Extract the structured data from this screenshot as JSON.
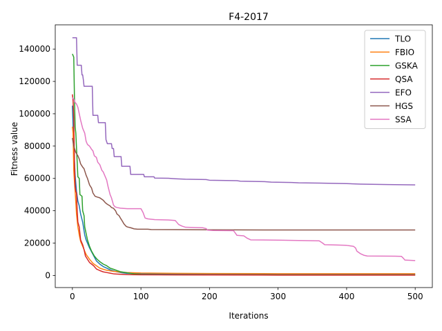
{
  "chart_data": {
    "type": "line",
    "title": "F4-2017",
    "xlabel": "Iterations",
    "ylabel": "Fitness value",
    "xlim": [
      -25,
      525
    ],
    "ylim": [
      -7500,
      155000
    ],
    "xticks": [
      0,
      100,
      200,
      300,
      400,
      500
    ],
    "yticks": [
      0,
      20000,
      40000,
      60000,
      80000,
      100000,
      120000,
      140000
    ],
    "grid": false,
    "legend_position": "top-right",
    "series": [
      {
        "name": "TLO",
        "color": "#1f77b4",
        "points": [
          [
            0,
            105000
          ],
          [
            2,
            80000
          ],
          [
            4,
            62000
          ],
          [
            6,
            52000
          ],
          [
            8,
            46000
          ],
          [
            10,
            43000
          ],
          [
            12,
            38000
          ],
          [
            15,
            33000
          ],
          [
            18,
            25000
          ],
          [
            20,
            22000
          ],
          [
            25,
            17000
          ],
          [
            30,
            13000
          ],
          [
            35,
            9000
          ],
          [
            40,
            7000
          ],
          [
            45,
            5500
          ],
          [
            50,
            4500
          ],
          [
            55,
            3500
          ],
          [
            60,
            2800
          ],
          [
            65,
            2200
          ],
          [
            70,
            1800
          ],
          [
            80,
            1300
          ],
          [
            100,
            1000
          ],
          [
            150,
            900
          ],
          [
            200,
            850
          ],
          [
            300,
            800
          ],
          [
            400,
            800
          ],
          [
            500,
            800
          ]
        ]
      },
      {
        "name": "FBIO",
        "color": "#ff7f0e",
        "points": [
          [
            0,
            92000
          ],
          [
            1,
            88000
          ],
          [
            2,
            65000
          ],
          [
            3,
            58000
          ],
          [
            4,
            52000
          ],
          [
            5,
            45000
          ],
          [
            6,
            38000
          ],
          [
            8,
            30000
          ],
          [
            10,
            25000
          ],
          [
            12,
            21000
          ],
          [
            15,
            18000
          ],
          [
            18,
            15000
          ],
          [
            20,
            13000
          ],
          [
            25,
            10000
          ],
          [
            30,
            7500
          ],
          [
            35,
            6000
          ],
          [
            40,
            4500
          ],
          [
            45,
            3800
          ],
          [
            50,
            3200
          ],
          [
            60,
            2500
          ],
          [
            70,
            2100
          ],
          [
            80,
            1800
          ],
          [
            100,
            1500
          ],
          [
            150,
            1300
          ],
          [
            200,
            1200
          ],
          [
            300,
            1100
          ],
          [
            400,
            1100
          ],
          [
            500,
            1100
          ]
        ]
      },
      {
        "name": "GSKA",
        "color": "#2ca02c",
        "points": [
          [
            0,
            137000
          ],
          [
            2,
            135000
          ],
          [
            3,
            110000
          ],
          [
            4,
            92000
          ],
          [
            5,
            88000
          ],
          [
            7,
            70000
          ],
          [
            8,
            61000
          ],
          [
            10,
            60000
          ],
          [
            11,
            50000
          ],
          [
            14,
            49000
          ],
          [
            15,
            40000
          ],
          [
            17,
            37000
          ],
          [
            18,
            30000
          ],
          [
            20,
            26000
          ],
          [
            22,
            22000
          ],
          [
            25,
            18000
          ],
          [
            28,
            15000
          ],
          [
            32,
            12000
          ],
          [
            36,
            10000
          ],
          [
            40,
            8500
          ],
          [
            45,
            7000
          ],
          [
            50,
            6000
          ],
          [
            55,
            4500
          ],
          [
            60,
            3800
          ],
          [
            65,
            3000
          ],
          [
            70,
            2300
          ],
          [
            80,
            1600
          ],
          [
            90,
            1000
          ],
          [
            100,
            600
          ],
          [
            150,
            400
          ],
          [
            200,
            350
          ],
          [
            300,
            300
          ],
          [
            400,
            300
          ],
          [
            500,
            300
          ]
        ]
      },
      {
        "name": "QSA",
        "color": "#d62728",
        "points": [
          [
            0,
            112000
          ],
          [
            1,
            108000
          ],
          [
            2,
            97000
          ],
          [
            3,
            70000
          ],
          [
            4,
            55000
          ],
          [
            5,
            52000
          ],
          [
            6,
            51000
          ],
          [
            7,
            40000
          ],
          [
            8,
            33000
          ],
          [
            10,
            30000
          ],
          [
            12,
            22000
          ],
          [
            15,
            19000
          ],
          [
            17,
            16000
          ],
          [
            19,
            12000
          ],
          [
            22,
            10000
          ],
          [
            25,
            8000
          ],
          [
            28,
            7000
          ],
          [
            31,
            6000
          ],
          [
            33,
            5000
          ],
          [
            35,
            4000
          ],
          [
            40,
            3000
          ],
          [
            45,
            2200
          ],
          [
            50,
            1800
          ],
          [
            55,
            1400
          ],
          [
            60,
            1000
          ],
          [
            70,
            700
          ],
          [
            80,
            500
          ],
          [
            100,
            400
          ],
          [
            200,
            300
          ],
          [
            300,
            200
          ],
          [
            400,
            200
          ],
          [
            500,
            150
          ]
        ]
      },
      {
        "name": "EFO",
        "color": "#9467bd",
        "points": [
          [
            0,
            147000
          ],
          [
            6,
            147000
          ],
          [
            7,
            130000
          ],
          [
            13,
            130000
          ],
          [
            14,
            124000
          ],
          [
            15,
            124000
          ],
          [
            16,
            121000
          ],
          [
            17,
            117000
          ],
          [
            29,
            117000
          ],
          [
            30,
            99000
          ],
          [
            37,
            99000
          ],
          [
            38,
            94500
          ],
          [
            48,
            94500
          ],
          [
            49,
            84000
          ],
          [
            51,
            81500
          ],
          [
            57,
            81500
          ],
          [
            58,
            78500
          ],
          [
            60,
            78500
          ],
          [
            61,
            73500
          ],
          [
            71,
            73500
          ],
          [
            72,
            67500
          ],
          [
            84,
            67500
          ],
          [
            85,
            62500
          ],
          [
            104,
            62500
          ],
          [
            105,
            61000
          ],
          [
            119,
            61000
          ],
          [
            120,
            60200
          ],
          [
            140,
            60100
          ],
          [
            150,
            59800
          ],
          [
            165,
            59500
          ],
          [
            195,
            59300
          ],
          [
            200,
            58900
          ],
          [
            240,
            58600
          ],
          [
            245,
            58300
          ],
          [
            280,
            58000
          ],
          [
            290,
            57700
          ],
          [
            320,
            57500
          ],
          [
            330,
            57300
          ],
          [
            360,
            57100
          ],
          [
            400,
            56800
          ],
          [
            420,
            56500
          ],
          [
            460,
            56200
          ],
          [
            500,
            56000
          ]
        ]
      },
      {
        "name": "HGS",
        "color": "#8c564b",
        "points": [
          [
            0,
            85000
          ],
          [
            2,
            80000
          ],
          [
            5,
            76000
          ],
          [
            8,
            74000
          ],
          [
            10,
            72000
          ],
          [
            12,
            69000
          ],
          [
            15,
            67000
          ],
          [
            17,
            66000
          ],
          [
            20,
            62000
          ],
          [
            22,
            60000
          ],
          [
            25,
            56000
          ],
          [
            28,
            54000
          ],
          [
            30,
            51000
          ],
          [
            33,
            49000
          ],
          [
            36,
            48500
          ],
          [
            40,
            48000
          ],
          [
            45,
            46500
          ],
          [
            48,
            45000
          ],
          [
            51,
            44000
          ],
          [
            55,
            43000
          ],
          [
            57,
            42000
          ],
          [
            60,
            41500
          ],
          [
            63,
            40000
          ],
          [
            65,
            38000
          ],
          [
            68,
            37000
          ],
          [
            70,
            35500
          ],
          [
            73,
            33500
          ],
          [
            75,
            32000
          ],
          [
            78,
            30500
          ],
          [
            80,
            30000
          ],
          [
            85,
            29500
          ],
          [
            90,
            28800
          ],
          [
            95,
            28600
          ],
          [
            110,
            28600
          ],
          [
            115,
            28400
          ],
          [
            200,
            28200
          ],
          [
            300,
            28100
          ],
          [
            400,
            28100
          ],
          [
            500,
            28100
          ]
        ]
      },
      {
        "name": "SSA",
        "color": "#e377c2",
        "points": [
          [
            0,
            110000
          ],
          [
            2,
            109000
          ],
          [
            4,
            107000
          ],
          [
            6,
            106000
          ],
          [
            8,
            104000
          ],
          [
            10,
            100000
          ],
          [
            12,
            96000
          ],
          [
            15,
            91000
          ],
          [
            18,
            88000
          ],
          [
            20,
            83000
          ],
          [
            22,
            81000
          ],
          [
            25,
            80000
          ],
          [
            28,
            78000
          ],
          [
            30,
            77000
          ],
          [
            32,
            74000
          ],
          [
            35,
            73000
          ],
          [
            37,
            70000
          ],
          [
            40,
            68500
          ],
          [
            43,
            65000
          ],
          [
            45,
            64000
          ],
          [
            47,
            62000
          ],
          [
            50,
            59000
          ],
          [
            52,
            55000
          ],
          [
            55,
            50000
          ],
          [
            57,
            48000
          ],
          [
            60,
            43500
          ],
          [
            62,
            42500
          ],
          [
            65,
            42000
          ],
          [
            70,
            41600
          ],
          [
            80,
            41300
          ],
          [
            100,
            41300
          ],
          [
            103,
            39000
          ],
          [
            106,
            35500
          ],
          [
            110,
            35000
          ],
          [
            120,
            34500
          ],
          [
            140,
            34300
          ],
          [
            150,
            34000
          ],
          [
            155,
            31500
          ],
          [
            160,
            30500
          ],
          [
            165,
            29800
          ],
          [
            180,
            29600
          ],
          [
            190,
            29500
          ],
          [
            195,
            29000
          ],
          [
            197,
            28000
          ],
          [
            205,
            27800
          ],
          [
            235,
            27700
          ],
          [
            238,
            26000
          ],
          [
            240,
            24800
          ],
          [
            250,
            24500
          ],
          [
            255,
            23000
          ],
          [
            260,
            22000
          ],
          [
            300,
            21800
          ],
          [
            330,
            21600
          ],
          [
            360,
            21400
          ],
          [
            365,
            20000
          ],
          [
            368,
            19000
          ],
          [
            380,
            18900
          ],
          [
            400,
            18600
          ],
          [
            410,
            18000
          ],
          [
            413,
            17000
          ],
          [
            415,
            15000
          ],
          [
            420,
            13500
          ],
          [
            425,
            12500
          ],
          [
            430,
            12000
          ],
          [
            470,
            11900
          ],
          [
            480,
            11800
          ],
          [
            483,
            10500
          ],
          [
            485,
            9500
          ],
          [
            490,
            9400
          ],
          [
            500,
            9200
          ]
        ]
      }
    ]
  }
}
